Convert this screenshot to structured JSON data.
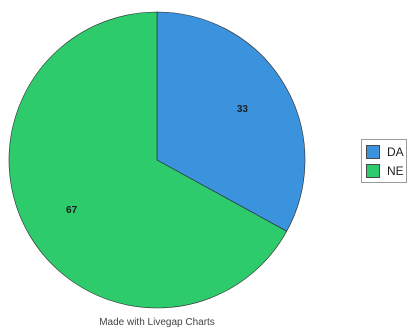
{
  "chart_data": {
    "type": "pie",
    "categories": [
      "DA",
      "NE"
    ],
    "values": [
      33,
      67
    ],
    "data_labels": [
      "33",
      "67"
    ],
    "colors": [
      "#3b93de",
      "#2ecb6c"
    ],
    "start_angle_deg": 0,
    "direction": "clockwise",
    "legend": {
      "placement": "right",
      "entries": [
        "DA",
        "NE"
      ]
    },
    "title": ""
  },
  "credit_text": "Made with Livegap Charts"
}
